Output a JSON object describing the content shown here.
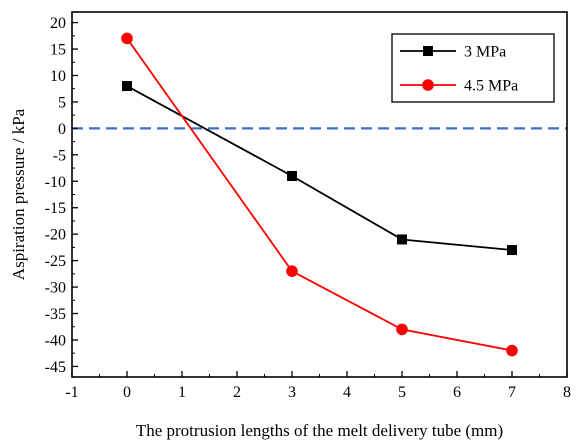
{
  "chart_data": {
    "type": "line",
    "title": "",
    "xlabel": "The protrusion lengths of the melt delivery tube (mm)",
    "ylabel": "Aspiration pressure / kPa",
    "xlim": [
      -1,
      8
    ],
    "ylim": [
      -47,
      22
    ],
    "x_ticks": [
      -1,
      0,
      1,
      2,
      3,
      4,
      5,
      6,
      7,
      8
    ],
    "x_tick_labels": [
      "-1",
      "0",
      "1",
      "2",
      "3",
      "4",
      "5",
      "6",
      "7",
      "8"
    ],
    "y_ticks": [
      20,
      15,
      10,
      5,
      0,
      -5,
      -10,
      -15,
      -20,
      -25,
      -30,
      -35,
      -40,
      -45
    ],
    "y_tick_labels": [
      "20",
      "15",
      "10",
      "5",
      "0",
      "-5",
      "-10",
      "-15",
      "-20",
      "-25",
      "-30",
      "-35",
      "-40",
      "-45"
    ],
    "grid": false,
    "legend_position": "top-right",
    "reference_line": {
      "y": 0,
      "style": "dashed",
      "color": "#3f6fc8"
    },
    "series": [
      {
        "name": "3 MPa",
        "color": "#000000",
        "marker": "square",
        "x": [
          0,
          3,
          5,
          7
        ],
        "y": [
          8,
          -9,
          -21,
          -23
        ]
      },
      {
        "name": "4.5 MPa",
        "color": "#ff0000",
        "marker": "circle",
        "x": [
          0,
          3,
          5,
          7
        ],
        "y": [
          17,
          -27,
          -38,
          -42
        ]
      }
    ]
  }
}
